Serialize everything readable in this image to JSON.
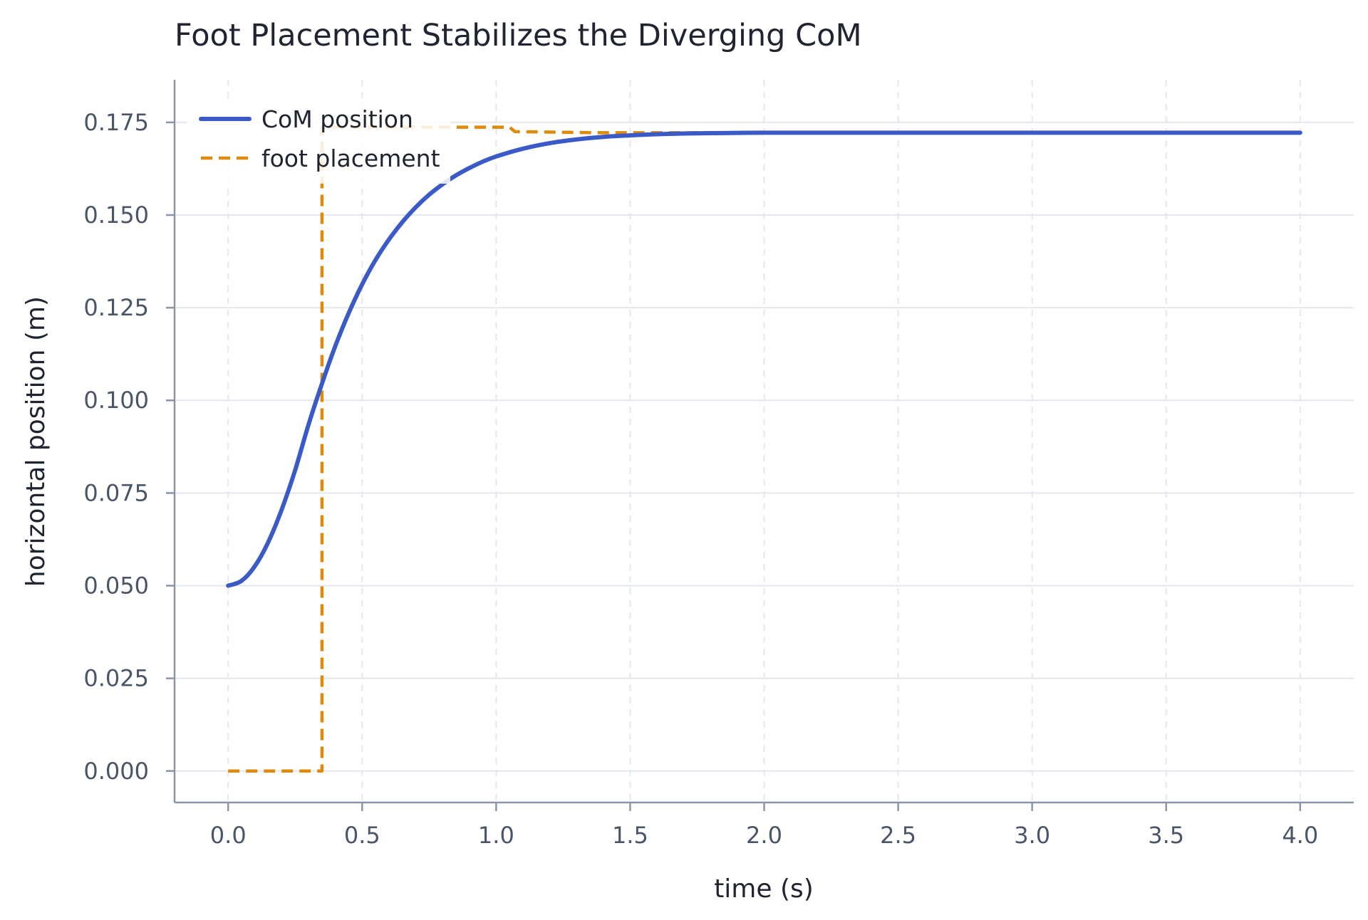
{
  "chart_data": {
    "type": "line",
    "title": "Foot Placement Stabilizes the Diverging CoM",
    "xlabel": "time (s)",
    "ylabel": "horizontal position (m)",
    "xlim": [
      -0.2,
      4.2
    ],
    "ylim": [
      -0.0085,
      0.1865
    ],
    "x_ticks": [
      0.0,
      0.5,
      1.0,
      1.5,
      2.0,
      2.5,
      3.0,
      3.5,
      4.0
    ],
    "x_tick_labels": [
      "0.0",
      "0.5",
      "1.0",
      "1.5",
      "2.0",
      "2.5",
      "3.0",
      "3.5",
      "4.0"
    ],
    "y_ticks": [
      0.0,
      0.025,
      0.05,
      0.075,
      0.1,
      0.125,
      0.15,
      0.175
    ],
    "y_tick_labels": [
      "0.000",
      "0.025",
      "0.050",
      "0.075",
      "0.100",
      "0.125",
      "0.150",
      "0.175"
    ],
    "grid": true,
    "legend_position": "top-left",
    "series": [
      {
        "name": "CoM position",
        "style": "solid",
        "color": "#3a5bc7",
        "x": [
          0.0,
          0.05,
          0.1,
          0.15,
          0.2,
          0.25,
          0.3,
          0.35,
          0.4,
          0.45,
          0.5,
          0.55,
          0.6,
          0.65,
          0.7,
          0.75,
          0.8,
          0.85,
          0.9,
          0.95,
          1.0,
          1.1,
          1.2,
          1.3,
          1.4,
          1.5,
          1.6,
          1.7,
          1.8,
          2.0,
          2.2,
          2.5,
          3.0,
          3.5,
          4.0
        ],
        "y": [
          0.05,
          0.0513,
          0.0553,
          0.0618,
          0.0706,
          0.0812,
          0.0935,
          0.1045,
          0.1147,
          0.1236,
          0.1313,
          0.1379,
          0.1434,
          0.1481,
          0.1521,
          0.1555,
          0.1583,
          0.1607,
          0.1627,
          0.1644,
          0.1658,
          0.1679,
          0.1694,
          0.1704,
          0.1711,
          0.1715,
          0.1718,
          0.172,
          0.1721,
          0.1722,
          0.1722,
          0.1722,
          0.1722,
          0.1722,
          0.1722
        ]
      },
      {
        "name": "foot placement",
        "style": "dashed",
        "color": "#e08a0b",
        "x": [
          0.0,
          0.35,
          0.35,
          1.05,
          1.07,
          1.4,
          4.0
        ],
        "y": [
          0.0,
          0.0,
          0.1737,
          0.1737,
          0.1725,
          0.1722,
          0.1722
        ]
      }
    ]
  }
}
